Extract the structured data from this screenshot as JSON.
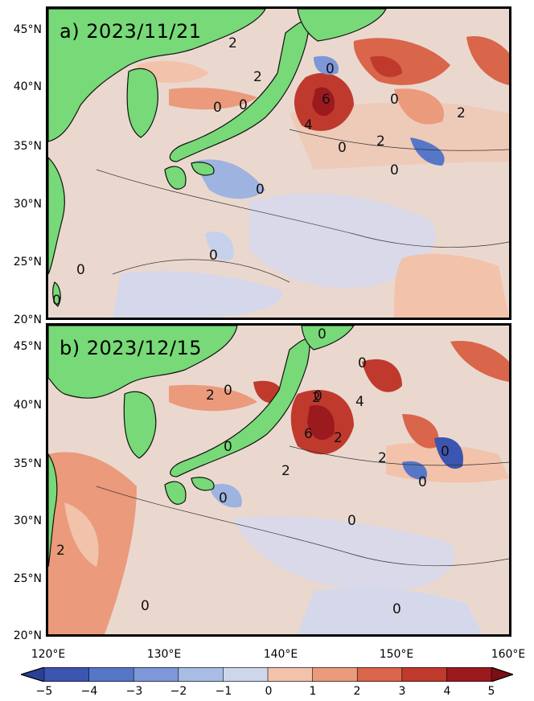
{
  "panels": [
    {
      "id": "a",
      "label": "a) 2023/11/21"
    },
    {
      "id": "b",
      "label": "b) 2023/12/15"
    }
  ],
  "axes": {
    "lat_a": [
      "45°N",
      "40°N",
      "35°N",
      "30°N",
      "25°N",
      "20°N"
    ],
    "lat_b": [
      "45°N",
      "40°N",
      "35°N",
      "30°N",
      "25°N",
      "20°N"
    ],
    "lon": [
      "120°E",
      "130°E",
      "140°E",
      "150°E",
      "160°E"
    ]
  },
  "colorbar": {
    "ticks": [
      "−5",
      "−4",
      "−3",
      "−2",
      "−1",
      "0",
      "1",
      "2",
      "3",
      "4",
      "5"
    ],
    "colors": [
      "#3b55b0",
      "#5677c8",
      "#7d97d8",
      "#a9bce4",
      "#cdd6ea",
      "#eadfd8",
      "#f2c2aa",
      "#eb9a7c",
      "#d9654b",
      "#bf3a2d",
      "#9b1a1e"
    ]
  },
  "contour_labels_a": [
    "2",
    "2",
    "0",
    "0",
    "0",
    "4",
    "6",
    "0",
    "2",
    "0",
    "0",
    "0",
    "0",
    "0",
    "0",
    "2"
  ],
  "contour_labels_b": [
    "0",
    "0",
    "2",
    "0",
    "2",
    "0",
    "4",
    "6",
    "2",
    "2",
    "0",
    "0",
    "0",
    "2",
    "0",
    "0",
    "0",
    "2",
    "0"
  ],
  "colors": {
    "land": "#77d977",
    "ocean_base": "#ead8cf",
    "coast": "#111111"
  }
}
